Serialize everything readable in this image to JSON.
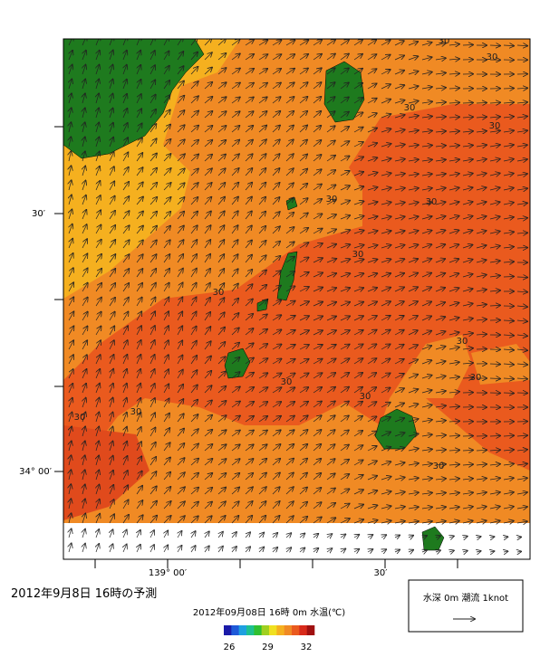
{
  "map": {
    "lat_labels": [
      "30′",
      "34° 00′"
    ],
    "lon_labels": [
      "139° 00′",
      "30′"
    ],
    "contour_labels": [
      "30",
      "30",
      "30",
      "30",
      "30",
      "30",
      "30",
      "30",
      "30",
      "30",
      "30",
      "30",
      "30",
      "30",
      "30"
    ]
  },
  "caption": "2012年9月8日 16時の予測",
  "colorbar": {
    "title": "2012年09月08日 16時 0m 水温(℃)",
    "ticks": [
      26,
      29,
      32
    ],
    "colors": [
      "#1a1aa8",
      "#1e5ad8",
      "#1ea0e0",
      "#1ec090",
      "#30c030",
      "#a0d020",
      "#f0e020",
      "#f5b01f",
      "#f08a24",
      "#ea5a1e",
      "#d82a1a",
      "#a01010"
    ]
  },
  "legend": {
    "label": "水深 0m 潮流 1knot"
  }
}
